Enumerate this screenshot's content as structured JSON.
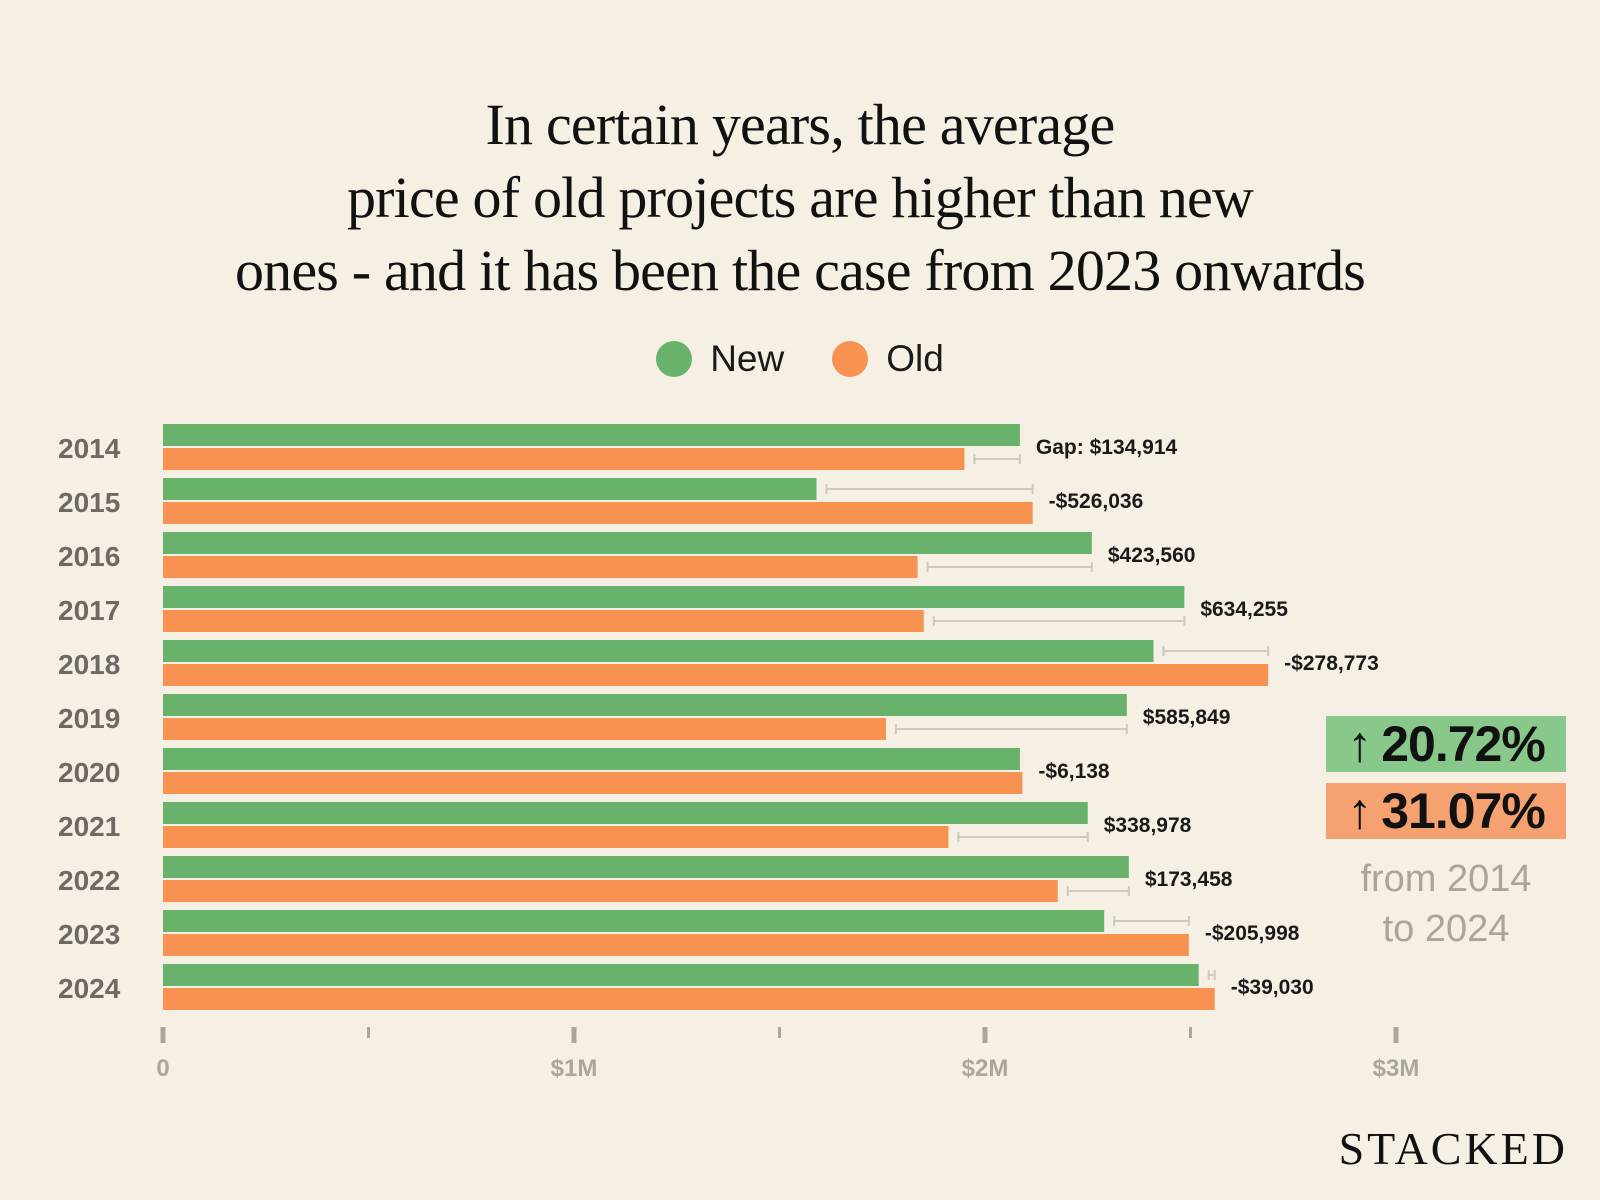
{
  "colors": {
    "background": "#f5f0e3",
    "new": "#68b26c",
    "old": "#f79250",
    "badge_new": "#88c98b",
    "badge_old": "#f6a270",
    "gap_line": "#cfc9bc",
    "axis": "#aba69b"
  },
  "legend": {
    "new_label": "New",
    "old_label": "Old"
  },
  "callout": {
    "new_change": "20.72%",
    "old_change": "31.07%",
    "arrow_icon": "↑",
    "since_line1": "from 2014",
    "since_line2": "to 2024"
  },
  "brand": "STACKED",
  "chart_data": {
    "type": "bar",
    "orientation": "horizontal",
    "title": "In certain years, the average price of old projects are higher than new ones - and it has been the case from 2023 onwards",
    "title_lines": [
      "In certain years, the average",
      "price of old projects are higher than new",
      "ones - and it has been the case from 2023 onwards"
    ],
    "categories": [
      "2014",
      "2015",
      "2016",
      "2017",
      "2018",
      "2019",
      "2020",
      "2021",
      "2022",
      "2023",
      "2024"
    ],
    "series": [
      {
        "name": "New",
        "values": [
          2085000,
          1590000,
          2260000,
          2485000,
          2410000,
          2345000,
          2085000,
          2250000,
          2350000,
          2290000,
          2520000
        ]
      },
      {
        "name": "Old",
        "values": [
          1950000,
          2116000,
          1836000,
          1851000,
          2689000,
          1759000,
          2091000,
          1911000,
          2177000,
          2496000,
          2559000
        ]
      }
    ],
    "gap_labels": [
      "Gap: $134,914",
      "-$526,036",
      "$423,560",
      "$634,255",
      "-$278,773",
      "$585,849",
      "-$6,138",
      "$338,978",
      "$173,458",
      "-$205,998",
      "-$39,030"
    ],
    "x_ticks": [
      0,
      500000,
      1000000,
      1500000,
      2000000,
      2500000,
      3000000
    ],
    "x_tick_labels": [
      "0",
      "",
      "$1M",
      "",
      "$2M",
      "",
      "$3M"
    ],
    "xlim": [
      0,
      3000000
    ],
    "xlabel": "",
    "ylabel": "",
    "legend_position": "top-center",
    "grid": false
  }
}
